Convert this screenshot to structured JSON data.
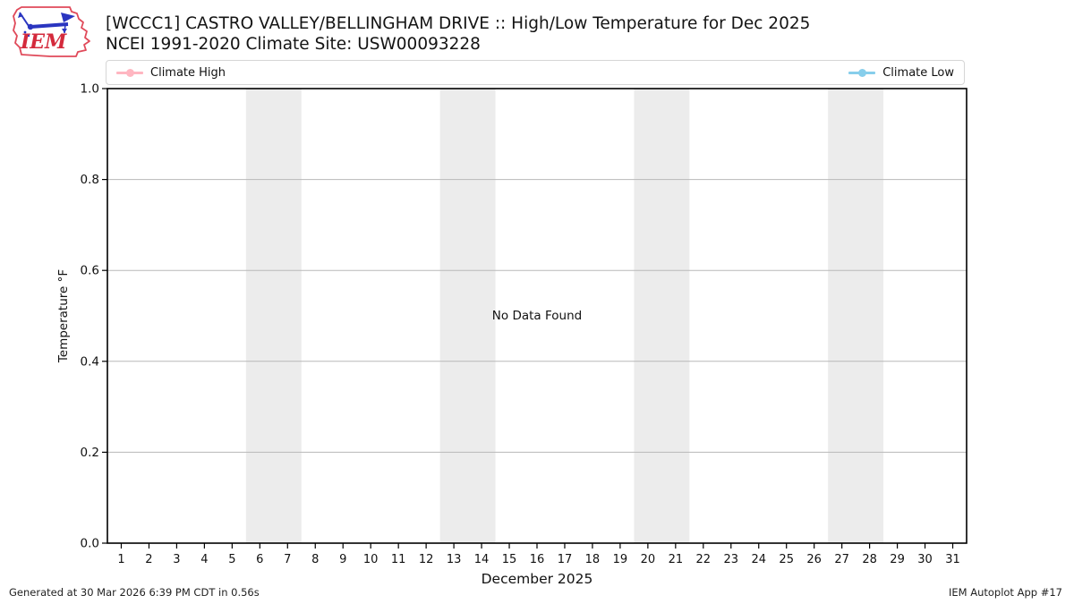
{
  "header": {
    "logo_text": "IEM",
    "title": "[WCCC1] CASTRO VALLEY/BELLINGHAM DRIVE :: High/Low Temperature for Dec 2025",
    "subtitle": "NCEI 1991-2020 Climate Site: USW00093228"
  },
  "legend": {
    "items": [
      {
        "label": "Climate High",
        "color": "#ffb6c1"
      },
      {
        "label": "Climate Low",
        "color": "#87ceeb"
      }
    ]
  },
  "chart_data": {
    "type": "line",
    "title": "[WCCC1] CASTRO VALLEY/BELLINGHAM DRIVE :: High/Low Temperature for Dec 2025",
    "subtitle": "NCEI 1991-2020 Climate Site: USW00093228",
    "xlabel": "December 2025",
    "ylabel": "Temperature °F",
    "xlim": [
      0.5,
      31.5
    ],
    "ylim": [
      0.0,
      1.0
    ],
    "x_ticks": [
      1,
      2,
      3,
      4,
      5,
      6,
      7,
      8,
      9,
      10,
      11,
      12,
      13,
      14,
      15,
      16,
      17,
      18,
      19,
      20,
      21,
      22,
      23,
      24,
      25,
      26,
      27,
      28,
      29,
      30,
      31
    ],
    "y_ticks": [
      0.0,
      0.2,
      0.4,
      0.6,
      0.8,
      1.0
    ],
    "y_tick_labels": [
      "0.0",
      "0.2",
      "0.4",
      "0.6",
      "0.8",
      "1.0"
    ],
    "grid": true,
    "legend_position": "top",
    "no_data_text": "No Data Found",
    "weekend_bands": [
      [
        5.5,
        7.5
      ],
      [
        12.5,
        14.5
      ],
      [
        19.5,
        21.5
      ],
      [
        26.5,
        28.5
      ]
    ],
    "band_color": "#ececec",
    "grid_color": "#b8b8b8",
    "series": [
      {
        "name": "Climate High",
        "color": "#ffb6c1",
        "x": [],
        "values": []
      },
      {
        "name": "Climate Low",
        "color": "#87ceeb",
        "x": [],
        "values": []
      }
    ]
  },
  "footer": {
    "generated": "Generated at 30 Mar 2026 6:39 PM CDT in 0.56s",
    "app": "IEM Autoplot App #17"
  }
}
